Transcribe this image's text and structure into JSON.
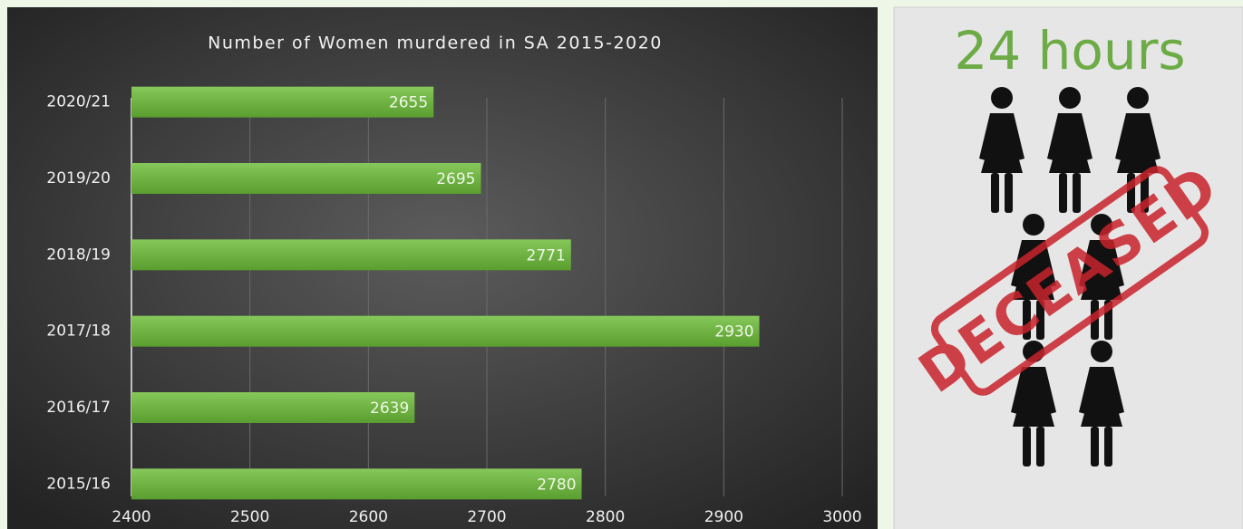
{
  "chart_data": {
    "type": "bar",
    "orientation": "horizontal",
    "title": "Number of Women murdered in SA 2015-2020",
    "categories": [
      "2020/21",
      "2019/20",
      "2018/19",
      "2017/18",
      "2016/17",
      "2015/16"
    ],
    "values": [
      2655,
      2695,
      2771,
      2930,
      2639,
      2780
    ],
    "color": "#6db33f",
    "xlim": [
      2400,
      3000
    ],
    "xticks": [
      2400,
      2500,
      2600,
      2700,
      2800,
      2900,
      3000
    ],
    "grid": true
  },
  "infographic": {
    "title": "24 hours",
    "stamp": "DECEASED"
  }
}
